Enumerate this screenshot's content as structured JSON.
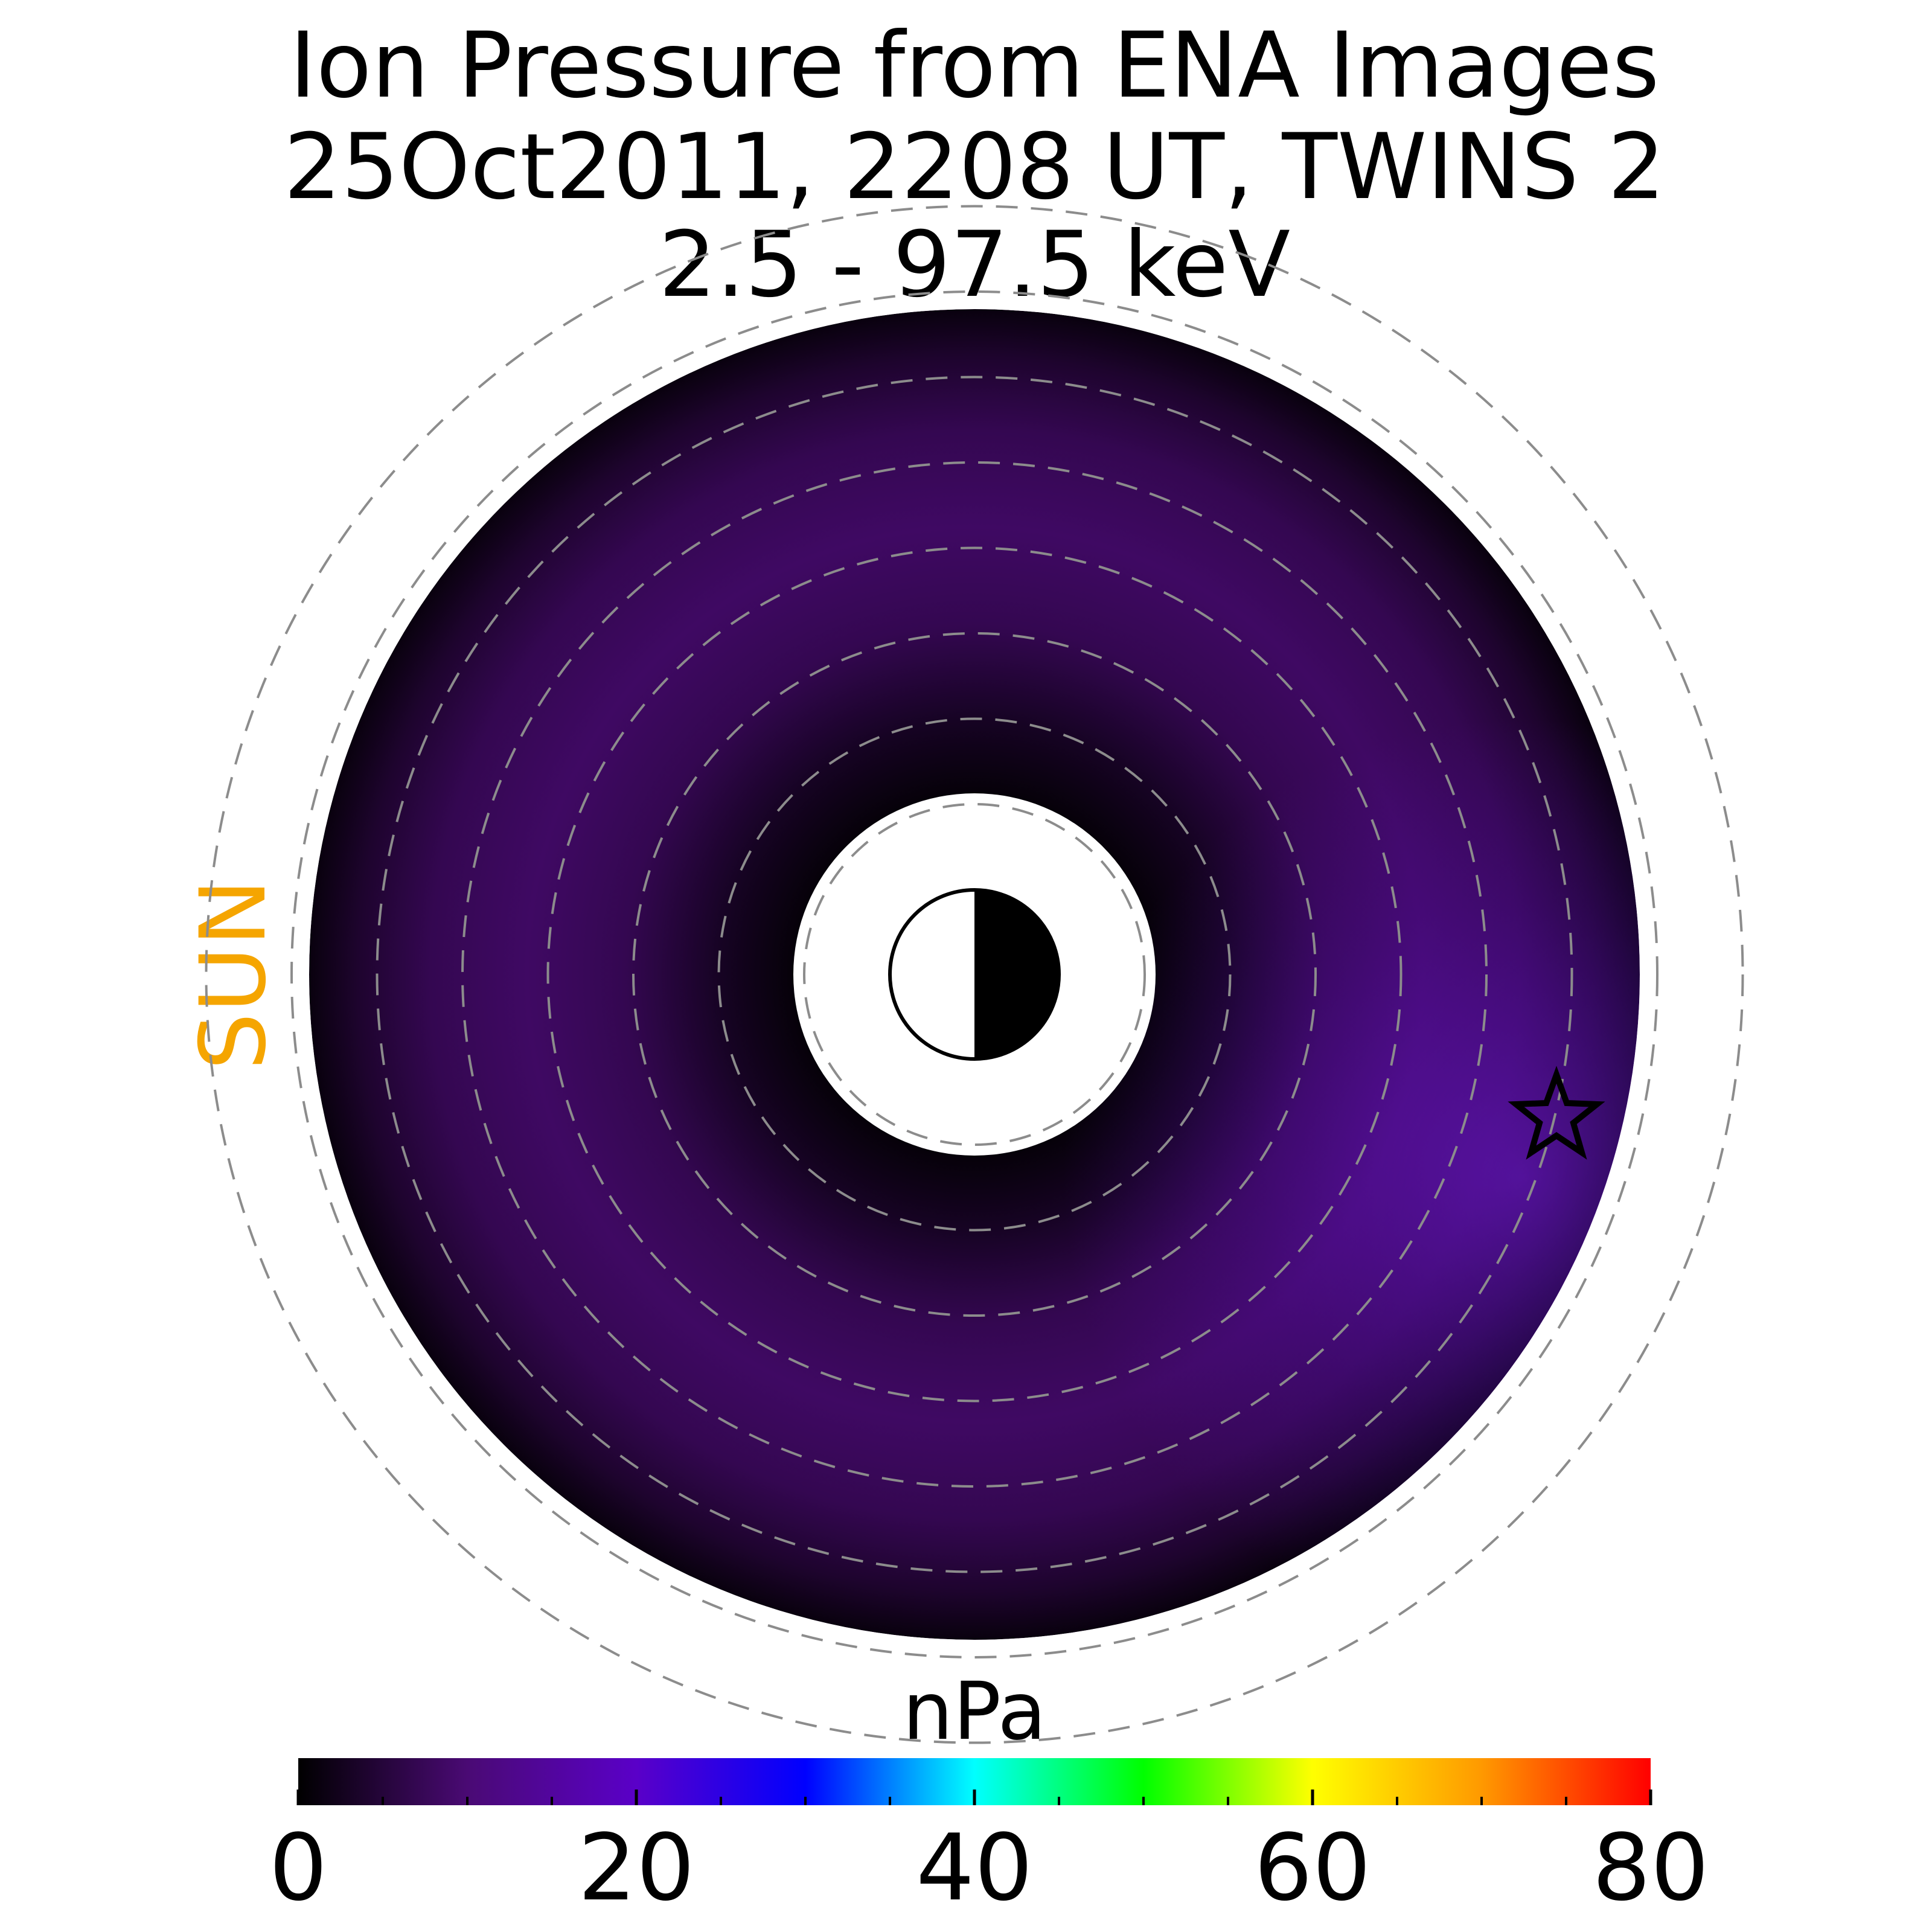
{
  "colors": {
    "sun": "#f5a500",
    "grid_rings": "#8c8c8c",
    "background": "#ffffff",
    "marker": "#000000"
  },
  "chart_data": {
    "type": "heatmap",
    "projection": "polar (equatorial plane, sunward to the left)",
    "title_lines": [
      "Ion Pressure from  ENA Images",
      "25Oct2011, 2208 UT,  TWINS 2",
      "2.5 - 97.5 keV"
    ],
    "sun_label": "SUN",
    "colorbar": {
      "label": "nPa",
      "range": [
        0,
        80
      ],
      "ticks": [
        0,
        20,
        40,
        60,
        80
      ],
      "tick_labels": [
        "0",
        "20",
        "40",
        "60",
        "80"
      ],
      "minor_tick_step": 5,
      "colormap": [
        "#000000",
        "#4a0a74",
        "#5a00c8",
        "#0000ff",
        "#00ffff",
        "#00ff00",
        "#ffff00",
        "#ff9900",
        "#ff0000"
      ]
    },
    "grid": true,
    "grid_ring_count": 8,
    "radial_profile_nPa": [
      {
        "r_frac": 0.0,
        "value": 0.8
      },
      {
        "r_frac": 0.15,
        "value": 3.0
      },
      {
        "r_frac": 0.35,
        "value": 7.0
      },
      {
        "r_frac": 0.55,
        "value": 8.5
      },
      {
        "r_frac": 0.75,
        "value": 7.0
      },
      {
        "r_frac": 0.9,
        "value": 4.0
      },
      {
        "r_frac": 1.0,
        "value": 1.2
      }
    ],
    "max_pressure_nPa_approx": 11,
    "max_pressure_sector": "dusk-to-midnight (right, lower right)",
    "earth_symbol": "half dayside white, nightside black",
    "spacecraft_marker": "star"
  }
}
